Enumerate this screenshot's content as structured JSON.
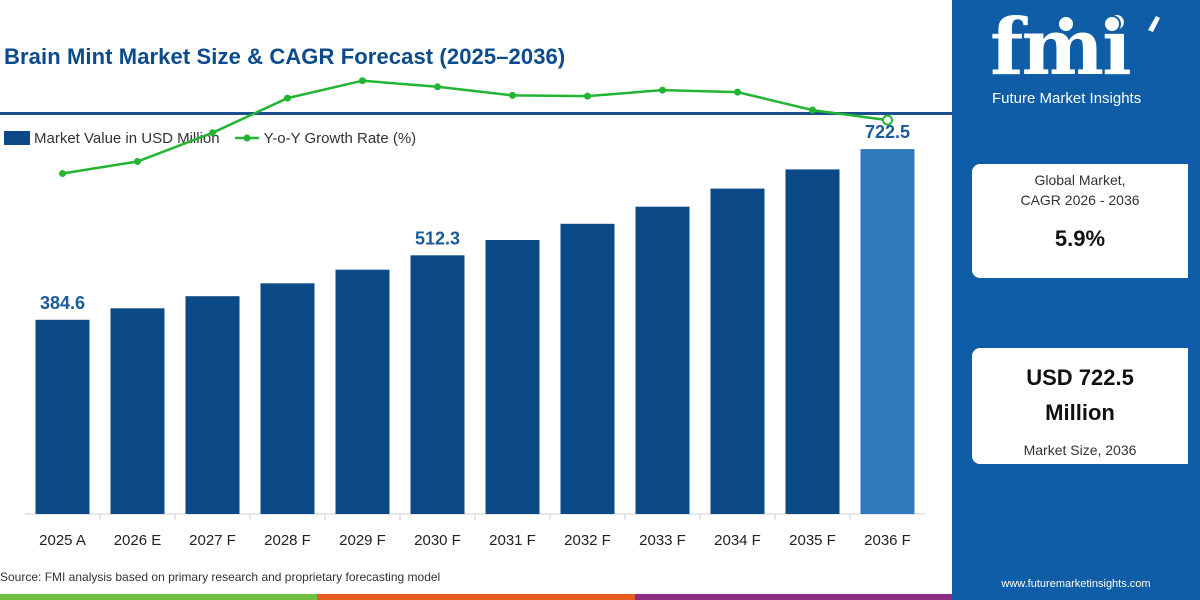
{
  "title": "Brain Mint Market Size & CAGR Forecast (2025–2036)",
  "legend": {
    "bar_label": "Market Value in USD Million",
    "line_label": "Y-o-Y Growth Rate (%)"
  },
  "colors": {
    "bar": "#0b4a86",
    "bar_highlight": "#2f78bb",
    "line": "#22b532",
    "title": "#0b4a8b",
    "panel": "#0e5da6",
    "stripe": [
      "#6ebd3c",
      "#e85d1f",
      "#8a2d83"
    ]
  },
  "chart_data": {
    "type": "bar",
    "categories": [
      "2025 A",
      "2026 E",
      "2027 F",
      "2028 F",
      "2029 F",
      "2030 F",
      "2031 F",
      "2032 F",
      "2033 F",
      "2034 F",
      "2035 F",
      "2036 F"
    ],
    "series": [
      {
        "name": "Market Value in USD Million",
        "type": "bar",
        "values": [
          384.6,
          407.3,
          431.3,
          456.8,
          483.8,
          512.3,
          542.5,
          574.6,
          608.5,
          644.4,
          682.4,
          722.5
        ]
      },
      {
        "name": "Y-o-Y Growth Rate (%)",
        "type": "line",
        "values": [
          5.1,
          5.28,
          5.71,
          6.23,
          6.49,
          6.4,
          6.27,
          6.26,
          6.35,
          6.32,
          6.05,
          5.9
        ]
      }
    ],
    "data_labels": [
      {
        "index": 0,
        "text": "384.6"
      },
      {
        "index": 5,
        "text": "512.3"
      },
      {
        "index": 11,
        "text": "722.5"
      }
    ],
    "highlight_index": 11,
    "ylim": [
      0,
      800
    ],
    "line_ylim": [
      0,
      7.4
    ],
    "legend_position": "top-left",
    "grid": false
  },
  "source": "Source: FMI analysis based on primary research and proprietary forecasting model",
  "sidebar": {
    "logo_text": "fmi",
    "logo_subtitle": "Future Market Insights",
    "cagr_label_1": "Global Market,",
    "cagr_label_2": "CAGR 2026 - 2036",
    "cagr_value": "5.9%",
    "size_value_1": "USD 722.5",
    "size_value_2": "Million",
    "size_label": "Market Size, 2036",
    "website": "www.futuremarketinsights.com"
  }
}
